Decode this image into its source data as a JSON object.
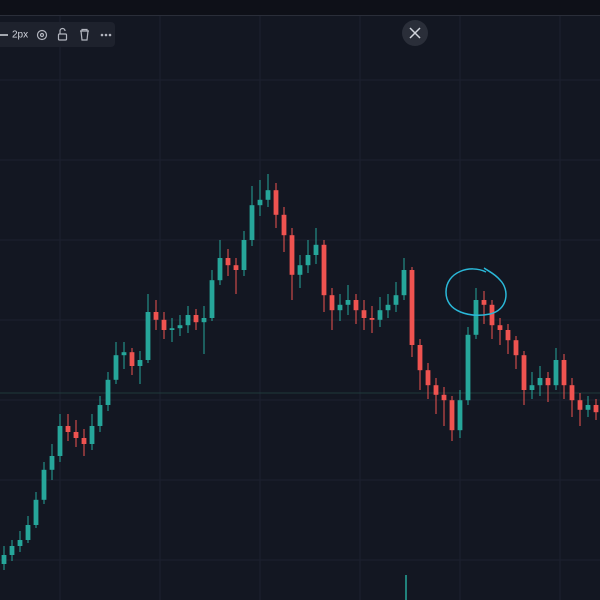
{
  "toolbar": {
    "width_label": "2px"
  },
  "chart_data": {
    "type": "candlestick",
    "up_color": "#26a69a",
    "down_color": "#ef5350",
    "ylim": [
      0,
      100
    ],
    "candles": [
      [
        6,
        9,
        5,
        7.5
      ],
      [
        7.5,
        10,
        6.5,
        9
      ],
      [
        9,
        11.5,
        8,
        10
      ],
      [
        10,
        14,
        9.5,
        12.5
      ],
      [
        12.5,
        18,
        12,
        16.7
      ],
      [
        16.7,
        23,
        16,
        21.7
      ],
      [
        21.7,
        26,
        20,
        24
      ],
      [
        24,
        31,
        23,
        29
      ],
      [
        29,
        31,
        26.5,
        28
      ],
      [
        28,
        30,
        25.5,
        27
      ],
      [
        27,
        28.5,
        24,
        26
      ],
      [
        26,
        31,
        25,
        29
      ],
      [
        29,
        34,
        28,
        32.5
      ],
      [
        32.5,
        38,
        31.5,
        36.7
      ],
      [
        36.7,
        43,
        36,
        40.8
      ],
      [
        40.8,
        43,
        38.5,
        41.3
      ],
      [
        41.3,
        42,
        37.5,
        39
      ],
      [
        39,
        41.5,
        36,
        40
      ],
      [
        40,
        51,
        39.5,
        48
      ],
      [
        48,
        50,
        45,
        46.7
      ],
      [
        46.7,
        48,
        43.5,
        45
      ],
      [
        45,
        47,
        43,
        45.3
      ],
      [
        45.3,
        47.5,
        44,
        45.8
      ],
      [
        45.8,
        49,
        44.5,
        47.5
      ],
      [
        47.5,
        48.5,
        45,
        46.3
      ],
      [
        46.3,
        49,
        41,
        47
      ],
      [
        47,
        55,
        46.5,
        53.3
      ],
      [
        53.3,
        60,
        52.5,
        57
      ],
      [
        57,
        58.5,
        54,
        55.8
      ],
      [
        55.8,
        57,
        51,
        55
      ],
      [
        55,
        61.5,
        54,
        60
      ],
      [
        60,
        69,
        59,
        65.8
      ],
      [
        65.8,
        70,
        64,
        66.7
      ],
      [
        66.7,
        71,
        65.5,
        68.3
      ],
      [
        68.3,
        69.5,
        62,
        64.2
      ],
      [
        64.2,
        65.5,
        58,
        60.8
      ],
      [
        60.8,
        62,
        50,
        54.2
      ],
      [
        54.2,
        57.5,
        52,
        55.8
      ],
      [
        55.8,
        60,
        54.5,
        57.5
      ],
      [
        57.5,
        62,
        56,
        59.2
      ],
      [
        59.2,
        60,
        48,
        50.8
      ],
      [
        50.8,
        52,
        45,
        48.3
      ],
      [
        48.3,
        51,
        46.5,
        49.2
      ],
      [
        49.2,
        52.5,
        47.5,
        50
      ],
      [
        50,
        51,
        46,
        48.3
      ],
      [
        48.3,
        50,
        45,
        47
      ],
      [
        47,
        49,
        44.5,
        46.7
      ],
      [
        46.7,
        50.5,
        45.5,
        48.3
      ],
      [
        48.3,
        51,
        47,
        49.2
      ],
      [
        49.2,
        53,
        48,
        50.8
      ],
      [
        50.8,
        57,
        50,
        55
      ],
      [
        55,
        55.5,
        40.5,
        42.5
      ],
      [
        42.5,
        43.5,
        35,
        38.3
      ],
      [
        38.3,
        39.5,
        33.5,
        35.8
      ],
      [
        35.8,
        37,
        31,
        34.2
      ],
      [
        34.2,
        35.5,
        29,
        33.3
      ],
      [
        33.3,
        34,
        26.5,
        28.3
      ],
      [
        28.3,
        35,
        27,
        33.3
      ],
      [
        33.3,
        45.5,
        32.5,
        44.2
      ],
      [
        44.2,
        52,
        43.5,
        50
      ],
      [
        50,
        51.5,
        46,
        49.2
      ],
      [
        49.2,
        50,
        43.5,
        45.8
      ],
      [
        45.8,
        47,
        42.5,
        45
      ],
      [
        45,
        46,
        41,
        43.3
      ],
      [
        43.3,
        44,
        38.5,
        40.8
      ],
      [
        40.8,
        41.5,
        32.5,
        35
      ],
      [
        35,
        38,
        33.5,
        35.8
      ],
      [
        35.8,
        39,
        34,
        37
      ],
      [
        37,
        38,
        33,
        35.8
      ],
      [
        35.8,
        42,
        35,
        40
      ],
      [
        40,
        41,
        33.5,
        35.8
      ],
      [
        35.8,
        37,
        30.5,
        33.3
      ],
      [
        33.3,
        34.5,
        29,
        31.7
      ],
      [
        31.7,
        34,
        30.5,
        32.5
      ],
      [
        32.5,
        33.5,
        30,
        31.3
      ]
    ]
  }
}
